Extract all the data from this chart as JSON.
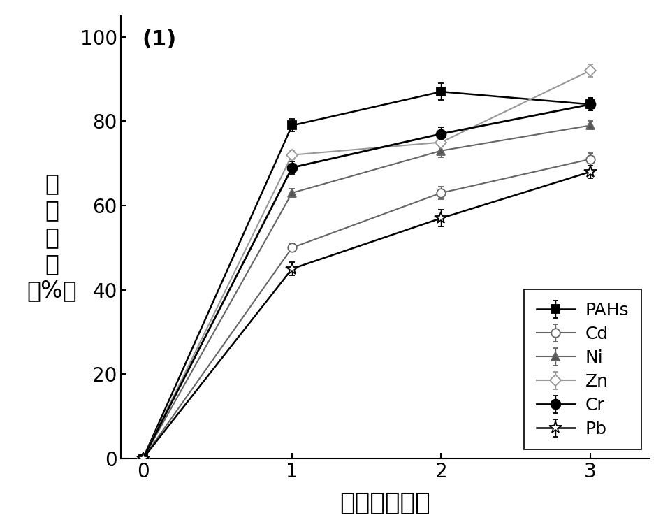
{
  "x": [
    0,
    1,
    2,
    3
  ],
  "series_order": [
    "PAHs",
    "Cd",
    "Ni",
    "Zn",
    "Cr",
    "Pb"
  ],
  "y_values": {
    "PAHs": [
      0,
      79,
      87,
      84
    ],
    "Cd": [
      0,
      50,
      63,
      71
    ],
    "Ni": [
      0,
      63,
      73,
      79
    ],
    "Zn": [
      0,
      72,
      75,
      92
    ],
    "Cr": [
      0,
      69,
      77,
      84
    ],
    "Pb": [
      0,
      45,
      57,
      68
    ]
  },
  "yerr_values": {
    "PAHs": [
      0,
      1.5,
      2.0,
      1.5
    ],
    "Cd": [
      0,
      1.0,
      1.5,
      1.5
    ],
    "Ni": [
      0,
      1.0,
      1.5,
      1.0
    ],
    "Zn": [
      0,
      1.0,
      1.0,
      1.5
    ],
    "Cr": [
      0,
      1.5,
      1.5,
      1.5
    ],
    "Pb": [
      0,
      1.5,
      2.0,
      1.5
    ]
  },
  "line_colors": {
    "PAHs": "#000000",
    "Cd": "#666666",
    "Ni": "#666666",
    "Zn": "#999999",
    "Cr": "#000000",
    "Pb": "#000000"
  },
  "markerfacecolors": {
    "PAHs": "#000000",
    "Cd": "#ffffff",
    "Ni": "#555555",
    "Zn": "#ffffff",
    "Cr": "#000000",
    "Pb": "#ffffff"
  },
  "markers": {
    "PAHs": "s",
    "Cd": "o",
    "Ni": "^",
    "Zn": "D",
    "Cr": "o",
    "Pb": "*"
  },
  "markersizes": {
    "PAHs": 9,
    "Cd": 9,
    "Ni": 9,
    "Zn": 8,
    "Cr": 10,
    "Pb": 13
  },
  "linewidths": {
    "PAHs": 1.8,
    "Cd": 1.5,
    "Ni": 1.5,
    "Zn": 1.5,
    "Cr": 2.0,
    "Pb": 1.8
  },
  "xlabel": "连续淋洗次数",
  "ylabel_lines": [
    "去",
    "除",
    "效",
    "率",
    "（%）"
  ],
  "xlim": [
    -0.15,
    3.4
  ],
  "ylim": [
    0,
    105
  ],
  "xticks": [
    0,
    1,
    2,
    3
  ],
  "yticks": [
    0,
    20,
    40,
    60,
    80,
    100
  ],
  "panel_label": "(1)",
  "background_color": "#ffffff",
  "xlabel_fontsize": 26,
  "ylabel_fontsize": 24,
  "tick_fontsize": 20,
  "panel_fontsize": 22,
  "legend_fontsize": 18
}
